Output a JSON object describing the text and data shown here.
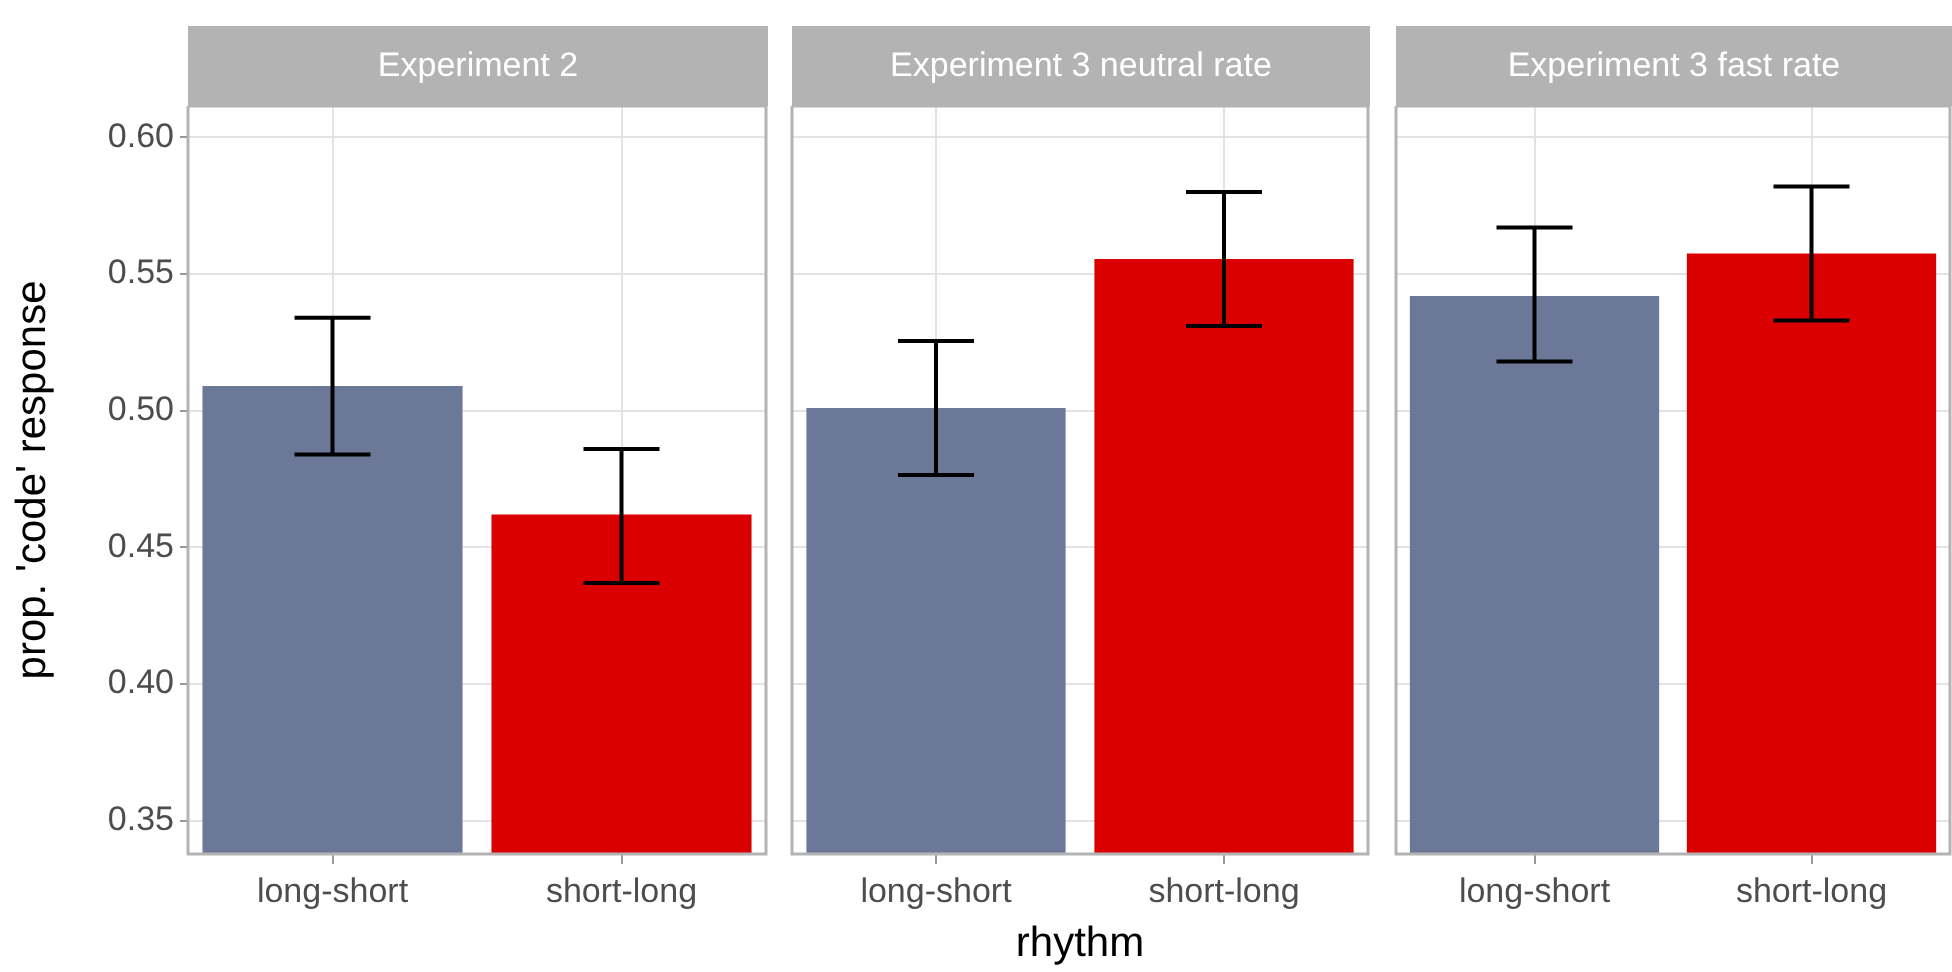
{
  "chart_data": [
    {
      "type": "bar",
      "title": "Experiment 2",
      "ylabel": "prop. 'code' response",
      "categories": [
        "long-short",
        "short-long"
      ],
      "values": [
        0.509,
        0.462
      ],
      "colors": [
        "#6b7898",
        "#db0000"
      ],
      "errors": [
        [
          0.484,
          0.534
        ],
        [
          0.437,
          0.486
        ]
      ],
      "ylim": [
        0.3378,
        0.6115
      ],
      "yticks": [
        0.35,
        {
          "value": 0.4,
          "label": "0.40"
        },
        0.45,
        {
          "value": 0.5,
          "label": "0.50"
        },
        0.55,
        {
          "value": 0.6,
          "label": "0.60"
        }
      ],
      "grid": true
    },
    {
      "type": "bar",
      "title": "Experiment 3 neutral rate",
      "xlabel": "rhythm",
      "categories": [
        "long-short",
        "short-long"
      ],
      "values": [
        0.501,
        0.5555
      ],
      "colors": [
        "#6b7898",
        "#db0000"
      ],
      "errors": [
        [
          0.4765,
          0.5255
        ],
        [
          0.531,
          0.58
        ]
      ],
      "ylim": [
        0.3378,
        0.6115
      ],
      "yticks": [
        0.35,
        0.4,
        0.45,
        0.5,
        0.55,
        0.6
      ],
      "grid": true,
      "tick_labels": "x"
    },
    {
      "type": "bar",
      "title": "Experiment 3 fast rate",
      "categories": [
        "long-short",
        "short-long"
      ],
      "values": [
        0.542,
        0.5575
      ],
      "colors": [
        "#6b7898",
        "#db0000"
      ],
      "errors": [
        [
          0.518,
          0.567
        ],
        [
          0.533,
          0.582
        ]
      ],
      "ylim": [
        0.3378,
        0.6115
      ],
      "yticks": [
        0.35,
        0.4,
        0.45,
        0.5,
        0.55,
        0.6
      ],
      "grid": true,
      "tick_labels": "x"
    }
  ]
}
